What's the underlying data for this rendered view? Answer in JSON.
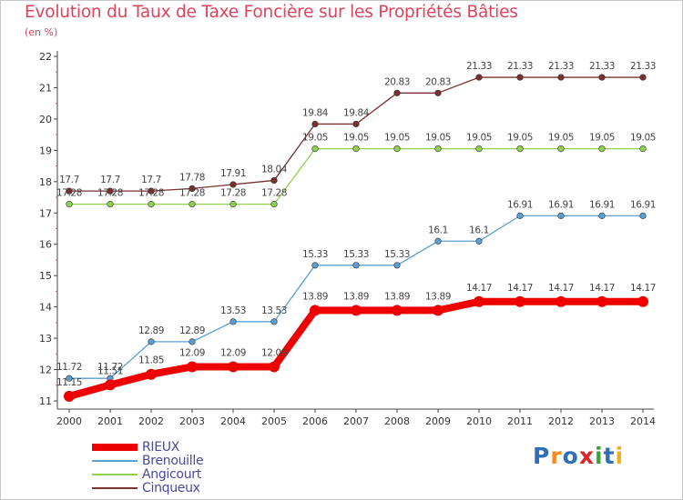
{
  "header": {
    "title": "Evolution du Taux de Taxe Foncière sur les Propriétés Bâties",
    "unit": "(en %)"
  },
  "logo": {
    "text": "Proxiti",
    "letter_colors": [
      "#2f6fb7",
      "#f28c1e",
      "#2f6fb7",
      "#d62828",
      "#3aa33a",
      "#2f6fb7",
      "#f2b01e"
    ]
  },
  "colors": {
    "title": "#e0435b",
    "axis": "#444444",
    "grid_tick_red": "#d06070"
  },
  "chart_data": {
    "type": "line",
    "title": "Evolution du Taux de Taxe Foncière sur les Propriétés Bâties",
    "ylabel": "(en %)",
    "x": [
      "2000",
      "2001",
      "2002",
      "2003",
      "2004",
      "2005",
      "2006",
      "2007",
      "2008",
      "2009",
      "2010",
      "2011",
      "2012",
      "2013",
      "2014"
    ],
    "ylim": [
      11,
      22
    ],
    "yticks": [
      11,
      12,
      13,
      14,
      15,
      16,
      17,
      18,
      19,
      20,
      21,
      22
    ],
    "grid": false,
    "legend_position": "bottom-left",
    "series": [
      {
        "name": "RIEUX",
        "color": "#ee0000",
        "values": [
          11.15,
          11.51,
          11.85,
          12.09,
          12.09,
          12.09,
          13.89,
          13.89,
          13.89,
          13.89,
          14.17,
          14.17,
          14.17,
          14.17,
          14.17
        ],
        "labels": [
          "11.15",
          "11.51",
          "11.85",
          "12.09",
          "12.09",
          "12.09",
          "13.89",
          "13.89",
          "13.89",
          "13.89",
          "14.17",
          "14.17",
          "14.17",
          "14.17",
          "14.17"
        ]
      },
      {
        "name": "Brenouille",
        "color": "#5a9fd4",
        "values": [
          11.72,
          11.72,
          12.89,
          12.89,
          13.53,
          13.53,
          15.33,
          15.33,
          15.33,
          16.1,
          16.1,
          16.91,
          16.91,
          16.91,
          16.91
        ],
        "labels": [
          "11.72",
          "11.72",
          "12.89",
          "12.89",
          "13.53",
          "13.53",
          "15.33",
          "15.33",
          "15.33",
          "16.1",
          "16.1",
          "16.91",
          "16.91",
          "16.91",
          "16.91"
        ]
      },
      {
        "name": "Angicourt",
        "color": "#8fd14f",
        "values": [
          17.28,
          17.28,
          17.28,
          17.28,
          17.28,
          17.28,
          19.05,
          19.05,
          19.05,
          19.05,
          19.05,
          19.05,
          19.05,
          19.05,
          19.05
        ],
        "labels": [
          "17.28",
          "17.28",
          "17.28",
          "17.28",
          "17.28",
          "17.28",
          "19.05",
          "19.05",
          "19.05",
          "19.05",
          "19.05",
          "19.05",
          "19.05",
          "19.05",
          "19.05"
        ]
      },
      {
        "name": "Cinqueux",
        "color": "#7a3030",
        "values": [
          17.7,
          17.7,
          17.7,
          17.78,
          17.91,
          18.04,
          19.84,
          19.84,
          20.83,
          20.83,
          21.33,
          21.33,
          21.33,
          21.33,
          21.33
        ],
        "labels": [
          "17.7",
          "17.7",
          "17.7",
          "17.78",
          "17.91",
          "18.04",
          "19.84",
          "19.84",
          "20.83",
          "20.83",
          "21.33",
          "21.33",
          "21.33",
          "21.33",
          "21.33"
        ]
      }
    ]
  }
}
